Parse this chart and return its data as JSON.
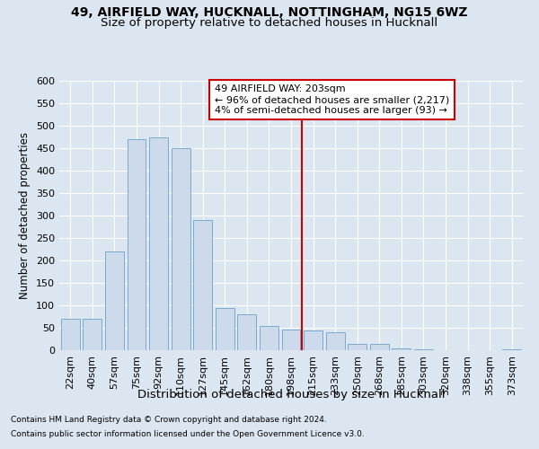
{
  "title1": "49, AIRFIELD WAY, HUCKNALL, NOTTINGHAM, NG15 6WZ",
  "title2": "Size of property relative to detached houses in Hucknall",
  "xlabel": "Distribution of detached houses by size in Hucknall",
  "ylabel": "Number of detached properties",
  "categories": [
    "22sqm",
    "40sqm",
    "57sqm",
    "75sqm",
    "92sqm",
    "110sqm",
    "127sqm",
    "145sqm",
    "162sqm",
    "180sqm",
    "198sqm",
    "215sqm",
    "233sqm",
    "250sqm",
    "268sqm",
    "285sqm",
    "303sqm",
    "320sqm",
    "338sqm",
    "355sqm",
    "373sqm"
  ],
  "values": [
    70,
    70,
    220,
    470,
    475,
    450,
    290,
    95,
    80,
    55,
    47,
    45,
    40,
    15,
    15,
    5,
    2,
    0,
    0,
    0,
    2
  ],
  "bar_color": "#ccdaec",
  "bar_edge_color": "#7aaad0",
  "vline_color": "#cc0000",
  "annotation_text": "49 AIRFIELD WAY: 203sqm\n← 96% of detached houses are smaller (2,217)\n4% of semi-detached houses are larger (93) →",
  "annotation_box_color": "#ffffff",
  "annotation_box_edge": "#cc0000",
  "bg_color": "#dce6f0",
  "plot_bg_color": "#dce6f0",
  "grid_color": "#ffffff",
  "ylim": [
    0,
    600
  ],
  "yticks": [
    0,
    50,
    100,
    150,
    200,
    250,
    300,
    350,
    400,
    450,
    500,
    550,
    600
  ],
  "footnote1": "Contains HM Land Registry data © Crown copyright and database right 2024.",
  "footnote2": "Contains public sector information licensed under the Open Government Licence v3.0.",
  "title1_fontsize": 10,
  "title2_fontsize": 9.5,
  "xlabel_fontsize": 9.5,
  "ylabel_fontsize": 8.5,
  "tick_fontsize": 8,
  "annotation_fontsize": 8,
  "footnote_fontsize": 6.5
}
